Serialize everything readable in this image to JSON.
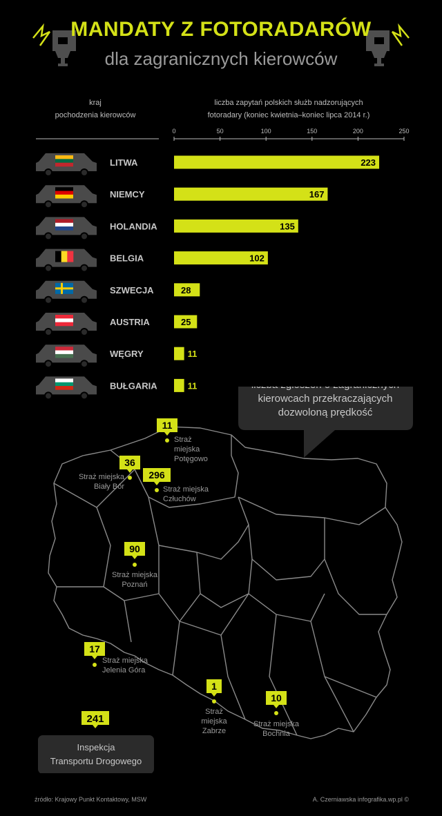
{
  "title": "MANDATY Z FOTORADARÓW",
  "subtitle": "dla zagranicznych kierowców",
  "header_left": [
    "kraj",
    "pochodzenia kierowców"
  ],
  "header_right": [
    "liczba zapytań polskich służb nadzorujących",
    "fotoradary (koniec kwietnia–koniec lipca 2014 r.)"
  ],
  "colors": {
    "accent": "#d4e117",
    "background": "#000000",
    "car": "#4a4a4a",
    "callout": "#2b2b2b"
  },
  "chart_data": {
    "type": "bar",
    "orientation": "horizontal",
    "title": "liczba zapytań polskich służb nadzorujących fotoradary (koniec kwietnia–koniec lipca 2014 r.)",
    "xlabel": "liczba zapytań",
    "ylabel": "kraj pochodzenia kierowców",
    "xlim": [
      0,
      250
    ],
    "xticks": [
      0,
      50,
      100,
      150,
      200,
      250
    ],
    "categories": [
      "LITWA",
      "NIEMCY",
      "HOLANDIA",
      "BELGIA",
      "SZWECJA",
      "AUSTRIA",
      "WĘGRY",
      "BUŁGARIA"
    ],
    "values": [
      223,
      167,
      135,
      102,
      28,
      25,
      11,
      11
    ],
    "flags": [
      {
        "type": "h",
        "colors": [
          "#fdb913",
          "#006a44",
          "#c1272d"
        ]
      },
      {
        "type": "h",
        "colors": [
          "#000000",
          "#dd0000",
          "#ffce00"
        ]
      },
      {
        "type": "h",
        "colors": [
          "#ae1c28",
          "#ffffff",
          "#21468b"
        ]
      },
      {
        "type": "v",
        "colors": [
          "#000000",
          "#fdda24",
          "#ef3340"
        ]
      },
      {
        "type": "cross",
        "colors": [
          "#006aa7",
          "#fecc00"
        ]
      },
      {
        "type": "h",
        "colors": [
          "#ed2939",
          "#ffffff",
          "#ed2939"
        ]
      },
      {
        "type": "h",
        "colors": [
          "#ce2939",
          "#ffffff",
          "#477050"
        ]
      },
      {
        "type": "h",
        "colors": [
          "#ffffff",
          "#00966e",
          "#d62612"
        ]
      }
    ]
  },
  "map": {
    "callout": [
      "liczba zgłoszeń o zagranicznych",
      "kierowcach przekraczających",
      "dozwoloną prędkość"
    ],
    "markers": [
      {
        "value": "11",
        "label": [
          "Straż",
          "miejska",
          "Potęgowo"
        ]
      },
      {
        "value": "36",
        "label": [
          "Straż miejska",
          "Biały Bór"
        ]
      },
      {
        "value": "296",
        "label": [
          "Straż miejska",
          "Człuchów"
        ]
      },
      {
        "value": "90",
        "label": [
          "Straż miejska",
          "Poznań"
        ]
      },
      {
        "value": "17",
        "label": [
          "Straż miejska",
          "Jelenia Góra"
        ]
      },
      {
        "value": "1",
        "label": [
          "Straż",
          "miejska",
          "Zabrze"
        ]
      },
      {
        "value": "10",
        "label": [
          "Straż miejska",
          "Bochnia"
        ]
      }
    ],
    "itd": {
      "value": "241",
      "label": [
        "Inspekcja",
        "Transportu Drogowego"
      ]
    }
  },
  "footer": {
    "source": "źródło: Krajowy Punkt Kontaktowy, MSW",
    "author": "A. Czerniawska infografika.wp.pl ©"
  }
}
